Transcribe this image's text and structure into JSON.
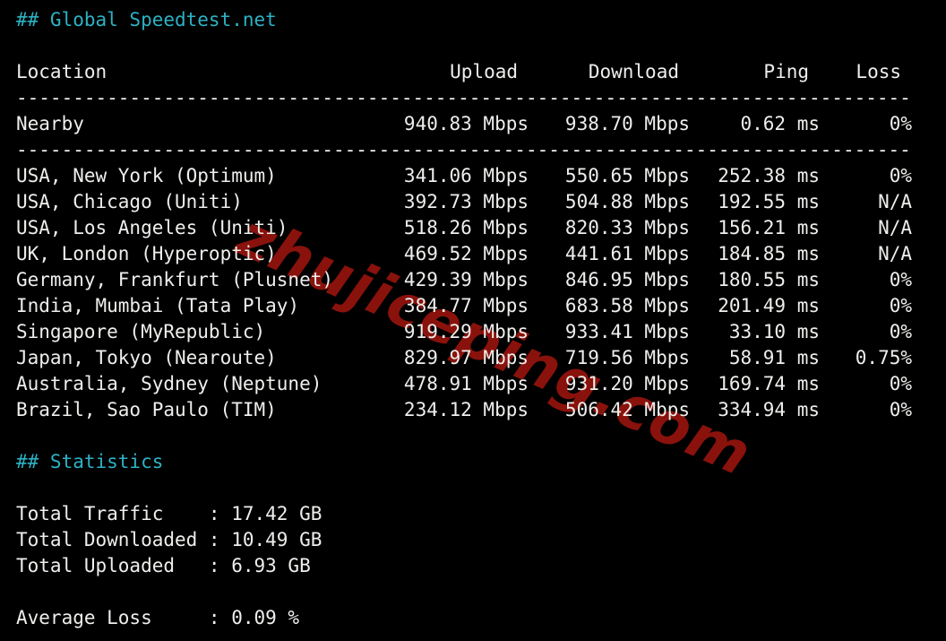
{
  "global_section": {
    "title": "## Global Speedtest.net"
  },
  "speedtest": {
    "columns": [
      "Location",
      "Upload",
      "Download",
      "Ping",
      "Loss"
    ],
    "divider": "-------------------------------------------------------------------------------",
    "rows": [
      {
        "location": "Nearby",
        "upload": "940.83 Mbps",
        "download": "938.70 Mbps",
        "ping": "0.62 ms",
        "loss": "0%"
      },
      {
        "location": "USA, New York (Optimum)",
        "upload": "341.06 Mbps",
        "download": "550.65 Mbps",
        "ping": "252.38 ms",
        "loss": "0%"
      },
      {
        "location": "USA, Chicago (Uniti)",
        "upload": "392.73 Mbps",
        "download": "504.88 Mbps",
        "ping": "192.55 ms",
        "loss": "N/A"
      },
      {
        "location": "USA, Los Angeles (Uniti)",
        "upload": "518.26 Mbps",
        "download": "820.33 Mbps",
        "ping": "156.21 ms",
        "loss": "N/A"
      },
      {
        "location": "UK, London (Hyperoptic)",
        "upload": "469.52 Mbps",
        "download": "441.61 Mbps",
        "ping": "184.85 ms",
        "loss": "N/A"
      },
      {
        "location": "Germany, Frankfurt (Plusnet)",
        "upload": "429.39 Mbps",
        "download": "846.95 Mbps",
        "ping": "180.55 ms",
        "loss": "0%"
      },
      {
        "location": "India, Mumbai (Tata Play)",
        "upload": "384.77 Mbps",
        "download": "683.58 Mbps",
        "ping": "201.49 ms",
        "loss": "0%"
      },
      {
        "location": "Singapore (MyRepublic)",
        "upload": "919.29 Mbps",
        "download": "933.41 Mbps",
        "ping": "33.10 ms",
        "loss": "0%"
      },
      {
        "location": "Japan, Tokyo (Nearoute)",
        "upload": "829.97 Mbps",
        "download": "719.56 Mbps",
        "ping": "58.91 ms",
        "loss": "0.75%"
      },
      {
        "location": "Australia, Sydney (Neptune)",
        "upload": "478.91 Mbps",
        "download": "931.20 Mbps",
        "ping": "169.74 ms",
        "loss": "0%"
      },
      {
        "location": "Brazil, Sao Paulo (TIM)",
        "upload": "234.12 Mbps",
        "download": "506.42 Mbps",
        "ping": "334.94 ms",
        "loss": "0%"
      }
    ]
  },
  "statistics": {
    "title": "## Statistics",
    "separator": ":",
    "rows": [
      {
        "label": "Total Traffic",
        "value": "17.42 GB"
      },
      {
        "label": "Total Downloaded",
        "value": "10.49 GB"
      },
      {
        "label": "Total Uploaded",
        "value": "6.93 GB"
      }
    ],
    "average_loss": {
      "label": "Average Loss",
      "value": "0.09 %"
    }
  },
  "watermark": {
    "text": "zhujiceping.com",
    "color": "#8a120c"
  },
  "colors": {
    "background": "#000000",
    "text": "#eeeeec",
    "accent_cyan": "#2cb2c4"
  }
}
